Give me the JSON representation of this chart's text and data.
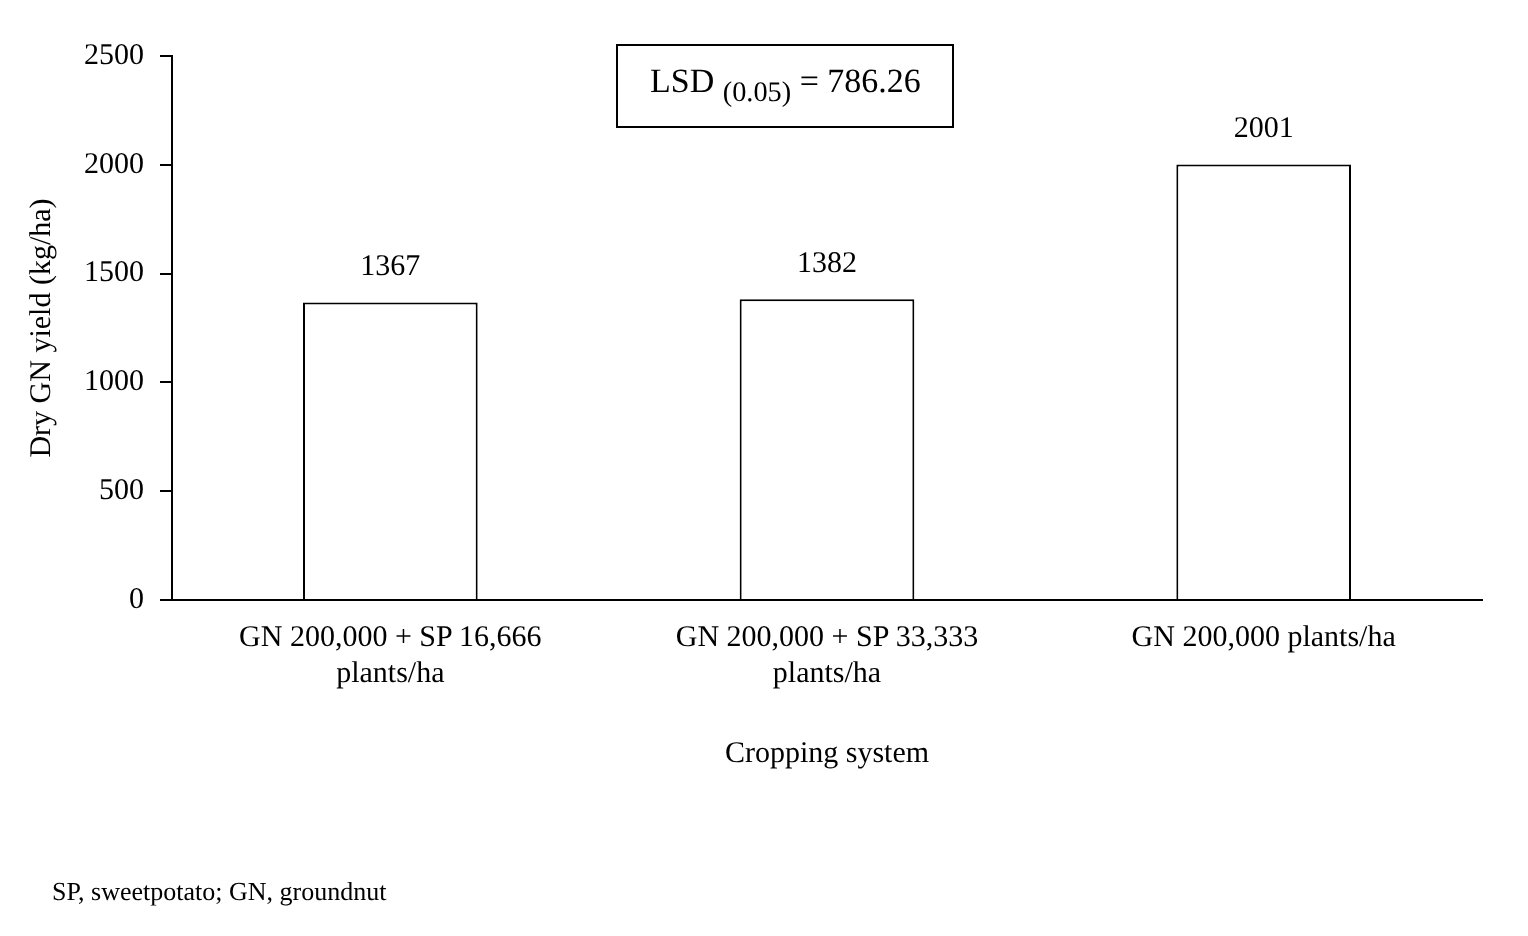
{
  "chart_data": {
    "type": "bar",
    "categories": [
      "GN 200,000 + SP 16,666 plants/ha",
      "GN 200,000 + SP 33,333 plants/ha",
      "GN 200,000 plants/ha"
    ],
    "values": [
      1367,
      1382,
      2001
    ],
    "color": "#ffffff",
    "xlabel": "Cropping system",
    "ylabel": "Dry GN yield (kg/ha)",
    "ylim": [
      0,
      2500
    ],
    "yticks": [
      0,
      500,
      1000,
      1500,
      2000,
      2500
    ],
    "data_labels": true,
    "grid": false,
    "legend": false,
    "annotations": [
      "LSD $_{(0.05)}$ = 786.26",
      "SP, sweetpotato; GN, groundnut"
    ]
  }
}
